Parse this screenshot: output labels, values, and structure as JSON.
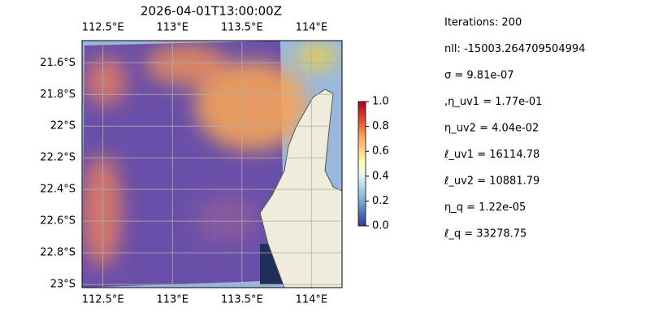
{
  "title": "2026-04-01T13:00:00Z",
  "map": {
    "xlim": [
      112.35,
      114.22
    ],
    "ylim": [
      -23.02,
      -21.46
    ],
    "xticks": [
      {
        "value": 112.5,
        "label": "112.5°E"
      },
      {
        "value": 113,
        "label": "113°E"
      },
      {
        "value": 113.5,
        "label": "113.5°E"
      },
      {
        "value": 114,
        "label": "114°E"
      }
    ],
    "yticks": [
      {
        "value": -21.6,
        "label": "21.6°S"
      },
      {
        "value": -21.8,
        "label": "21.8°S"
      },
      {
        "value": -22,
        "label": "22°S"
      },
      {
        "value": -22.2,
        "label": "22.2°S"
      },
      {
        "value": -22.4,
        "label": "22.4°S"
      },
      {
        "value": -22.6,
        "label": "22.6°S"
      },
      {
        "value": -22.8,
        "label": "22.8°S"
      },
      {
        "value": -23,
        "label": "23°S"
      }
    ]
  },
  "colorbar": {
    "lim": [
      0,
      1
    ],
    "ticks": [
      {
        "value": 0,
        "label": "0.0"
      },
      {
        "value": 0.2,
        "label": "0.2"
      },
      {
        "value": 0.4,
        "label": "0.4"
      },
      {
        "value": 0.6,
        "label": "0.6"
      },
      {
        "value": 0.8,
        "label": "0.8"
      },
      {
        "value": 1,
        "label": "1.0"
      }
    ]
  },
  "annotations": [
    "Iterations: 200",
    "nll: -15003.264709504994",
    "σ = 9.81e-07",
    ",η_uv1 = 1.77e-01",
    "η_uv2 = 4.04e-02",
    "ℓ_uv1 = 16114.78",
    "ℓ_uv2 = 10881.79",
    "η_q = 1.22e-05",
    "ℓ_q = 33278.75"
  ]
}
